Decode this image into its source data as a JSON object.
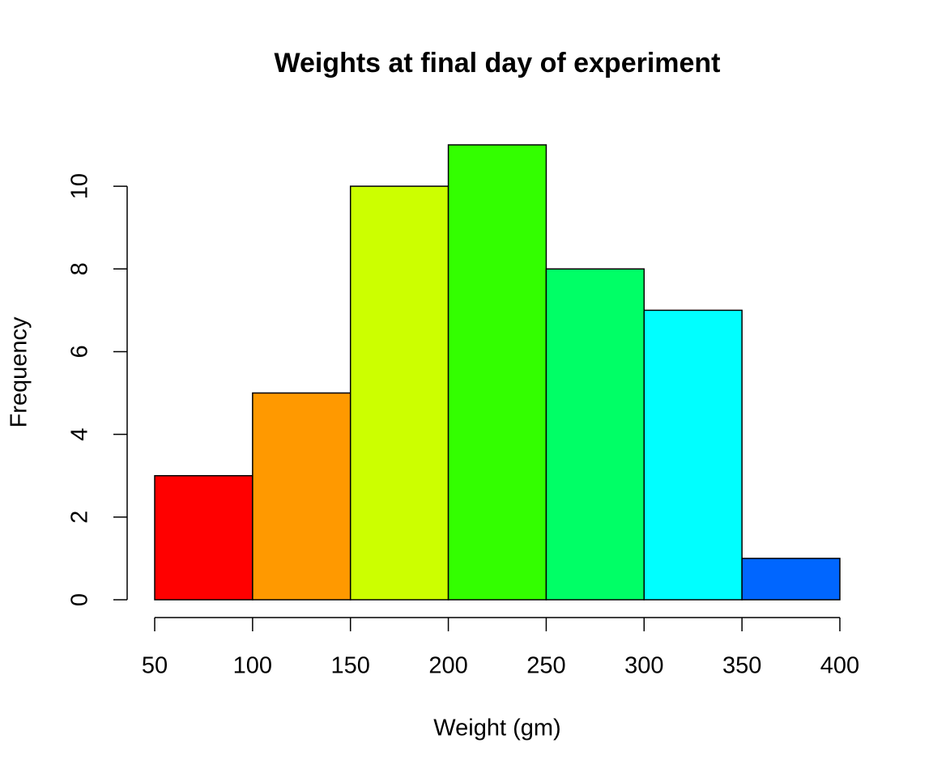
{
  "chart_data": {
    "type": "histogram",
    "title": "Weights at final day of experiment",
    "xlabel": "Weight (gm)",
    "ylabel": "Frequency",
    "bins": [
      50,
      100,
      150,
      200,
      250,
      300,
      350,
      400
    ],
    "values": [
      3,
      5,
      10,
      11,
      8,
      7,
      1
    ],
    "colors": [
      "#FF0000",
      "#FF9900",
      "#CCFF00",
      "#33FF00",
      "#00FF66",
      "#00FFFF",
      "#0066FF"
    ],
    "xlim": [
      50,
      400
    ],
    "ylim": [
      0,
      11
    ],
    "xticks": [
      50,
      100,
      150,
      200,
      250,
      300,
      350,
      400
    ],
    "yticks": [
      0,
      2,
      4,
      6,
      8,
      10
    ]
  }
}
